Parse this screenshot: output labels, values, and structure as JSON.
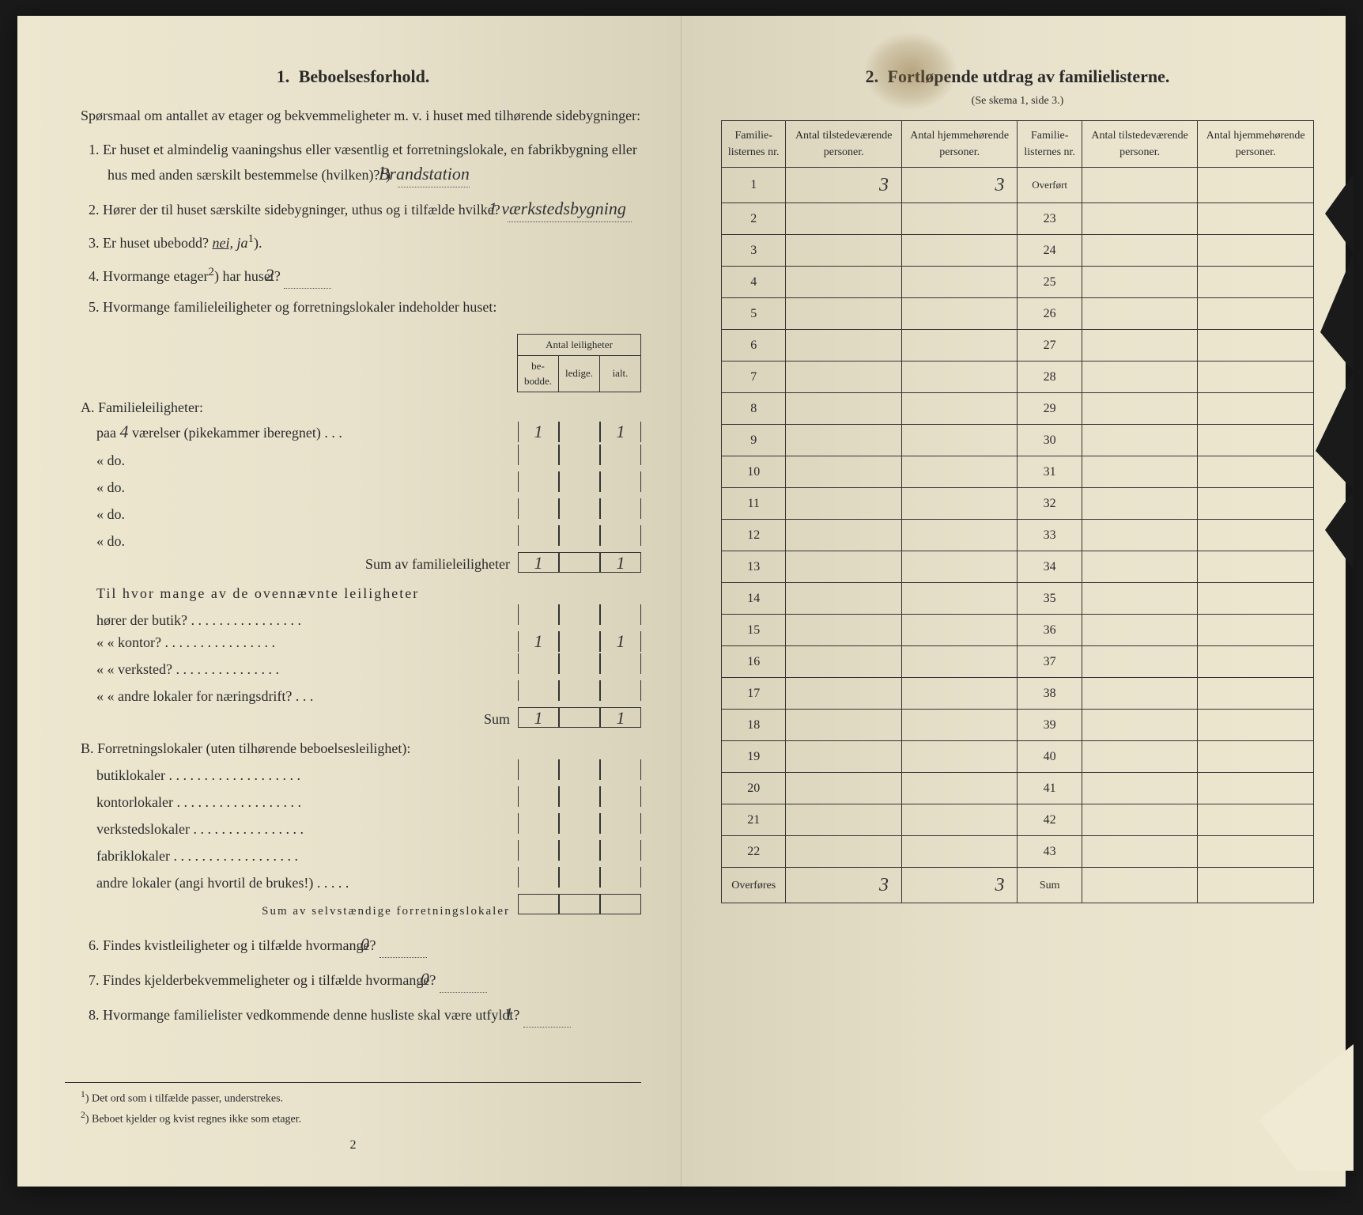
{
  "colors": {
    "paper": "#ede7d0",
    "paper_shadow": "#d8d2ba",
    "ink": "#2a2a2a",
    "stain": "#8b6e3c",
    "background": "#1a1a1a"
  },
  "left": {
    "section_num": "1.",
    "section_title": "Beboelsesforhold.",
    "intro": "Spørsmaal om antallet av etager og bekvemmeligheter m. v. i huset med tilhørende sidebygninger:",
    "q1": "Er huset et almindelig vaaningshus eller væsentlig et forretningslokale, en fabrikbygning eller hus med anden særskilt bestemmelse (hvilken)?",
    "q1_sup": "1",
    "q1_ans": "Brandstation",
    "q2": "Hører der til huset særskilte sidebygninger, uthus og i tilfælde hvilke?",
    "q2_ans": "1 værkstedsbygning",
    "q3": "Er huset ubebodd?",
    "q3_nei": "nei,",
    "q3_ja": "ja",
    "q3_sup": "1",
    "q4": "Hvormange etager",
    "q4_sup": "2",
    "q4_rest": "har huset?",
    "q4_ans": "2",
    "q5": "Hvormange familieleiligheter og forretningslokaler indeholder huset:",
    "apt_header": "Antal leiligheter",
    "apt_cols": {
      "c1": "be-\nbodde.",
      "c2": "ledige.",
      "c3": "ialt."
    },
    "A_title": "A. Familieleiligheter:",
    "A_rows": [
      {
        "label_pre": "paa",
        "label_hand": "4",
        "label_post": "værelser (pikekammer iberegnet) . . .",
        "c1": "1",
        "c2": "",
        "c3": "1"
      },
      {
        "label_pre": "«",
        "label_post": "do.",
        "c1": "",
        "c2": "",
        "c3": ""
      },
      {
        "label_pre": "«",
        "label_post": "do.",
        "c1": "",
        "c2": "",
        "c3": ""
      },
      {
        "label_pre": "«",
        "label_post": "do.",
        "c1": "",
        "c2": "",
        "c3": ""
      },
      {
        "label_pre": "«",
        "label_post": "do.",
        "c1": "",
        "c2": "",
        "c3": ""
      }
    ],
    "A_sum_label": "Sum av familieleiligheter",
    "A_sum": {
      "c1": "1",
      "c2": "",
      "c3": "1"
    },
    "A_mid": "Til hvor mange av de ovennævnte leiligheter",
    "A_mid_rows": [
      {
        "label": "hører der butik? . . . . . . . . . . . . . . . .",
        "c1": "",
        "c2": "",
        "c3": ""
      },
      {
        "label": "«    «   kontor? . . . . . . . . . . . . . . . .",
        "c1": "1",
        "c2": "",
        "c3": "1"
      },
      {
        "label": "«    «   verksted? . . . . . . . . . . . . . . .",
        "c1": "",
        "c2": "",
        "c3": ""
      },
      {
        "label": "«    «   andre lokaler for næringsdrift? . . .",
        "c1": "",
        "c2": "",
        "c3": ""
      }
    ],
    "A_mid_sum_label": "Sum",
    "A_mid_sum": {
      "c1": "1",
      "c2": "",
      "c3": "1"
    },
    "B_title": "B. Forretningslokaler (uten tilhørende beboelsesleilighet):",
    "B_rows": [
      {
        "label": "butiklokaler . . . . . . . . . . . . . . . . . . .",
        "c1": "",
        "c2": "",
        "c3": ""
      },
      {
        "label": "kontorlokaler . . . . . . . . . . . . . . . . . .",
        "c1": "",
        "c2": "",
        "c3": ""
      },
      {
        "label": "verkstedslokaler . . . . . . . . . . . . . . . .",
        "c1": "",
        "c2": "",
        "c3": ""
      },
      {
        "label": "fabriklokaler . . . . . . . . . . . . . . . . . .",
        "c1": "",
        "c2": "",
        "c3": ""
      },
      {
        "label": "andre lokaler (angi hvortil de brukes!) . . . . .",
        "c1": "",
        "c2": "",
        "c3": ""
      }
    ],
    "B_sum_label": "Sum av selvstændige forretningslokaler",
    "q6": "Findes kvistleiligheter og i tilfælde hvormange?",
    "q6_ans": "0",
    "q7": "Findes kjelderbekvemmeligheter og i tilfælde hvormange?",
    "q7_ans": "0",
    "q8": "Hvormange familielister vedkommende denne husliste skal være utfyldt?",
    "q8_ans": "1",
    "fn1": "Det ord som i tilfælde passer, understrekes.",
    "fn2": "Beboet kjelder og kvist regnes ikke som etager.",
    "page_num": "2"
  },
  "right": {
    "section_num": "2.",
    "section_title": "Fortløpende utdrag av familielisterne.",
    "subtitle": "(Se skema 1, side 3.)",
    "cols": {
      "c1": "Familie-\nlisternes\nnr.",
      "c2": "Antal\ntilstedeværende\npersoner.",
      "c3": "Antal\nhjemmehørende\npersoner.",
      "c4": "Familie-\nlisternes\nnr.",
      "c5": "Antal\ntilstedeværende\npersoner.",
      "c6": "Antal\nhjemmehørende\npersoner."
    },
    "rows_left": [
      {
        "n": "1",
        "a": "3",
        "b": "3"
      },
      {
        "n": "2",
        "a": "",
        "b": ""
      },
      {
        "n": "3",
        "a": "",
        "b": ""
      },
      {
        "n": "4",
        "a": "",
        "b": ""
      },
      {
        "n": "5",
        "a": "",
        "b": ""
      },
      {
        "n": "6",
        "a": "",
        "b": ""
      },
      {
        "n": "7",
        "a": "",
        "b": ""
      },
      {
        "n": "8",
        "a": "",
        "b": ""
      },
      {
        "n": "9",
        "a": "",
        "b": ""
      },
      {
        "n": "10",
        "a": "",
        "b": ""
      },
      {
        "n": "11",
        "a": "",
        "b": ""
      },
      {
        "n": "12",
        "a": "",
        "b": ""
      },
      {
        "n": "13",
        "a": "",
        "b": ""
      },
      {
        "n": "14",
        "a": "",
        "b": ""
      },
      {
        "n": "15",
        "a": "",
        "b": ""
      },
      {
        "n": "16",
        "a": "",
        "b": ""
      },
      {
        "n": "17",
        "a": "",
        "b": ""
      },
      {
        "n": "18",
        "a": "",
        "b": ""
      },
      {
        "n": "19",
        "a": "",
        "b": ""
      },
      {
        "n": "20",
        "a": "",
        "b": ""
      },
      {
        "n": "21",
        "a": "",
        "b": ""
      },
      {
        "n": "22",
        "a": "",
        "b": ""
      }
    ],
    "rows_right": [
      {
        "n": "Overført",
        "a": "",
        "b": ""
      },
      {
        "n": "23",
        "a": "",
        "b": ""
      },
      {
        "n": "24",
        "a": "",
        "b": ""
      },
      {
        "n": "25",
        "a": "",
        "b": ""
      },
      {
        "n": "26",
        "a": "",
        "b": ""
      },
      {
        "n": "27",
        "a": "",
        "b": ""
      },
      {
        "n": "28",
        "a": "",
        "b": ""
      },
      {
        "n": "29",
        "a": "",
        "b": ""
      },
      {
        "n": "30",
        "a": "",
        "b": ""
      },
      {
        "n": "31",
        "a": "",
        "b": ""
      },
      {
        "n": "32",
        "a": "",
        "b": ""
      },
      {
        "n": "33",
        "a": "",
        "b": ""
      },
      {
        "n": "34",
        "a": "",
        "b": ""
      },
      {
        "n": "35",
        "a": "",
        "b": ""
      },
      {
        "n": "36",
        "a": "",
        "b": ""
      },
      {
        "n": "37",
        "a": "",
        "b": ""
      },
      {
        "n": "38",
        "a": "",
        "b": ""
      },
      {
        "n": "39",
        "a": "",
        "b": ""
      },
      {
        "n": "40",
        "a": "",
        "b": ""
      },
      {
        "n": "41",
        "a": "",
        "b": ""
      },
      {
        "n": "42",
        "a": "",
        "b": ""
      },
      {
        "n": "43",
        "a": "",
        "b": ""
      }
    ],
    "footer_left_label": "Overføres",
    "footer_left": {
      "a": "3",
      "b": "3"
    },
    "footer_right_label": "Sum",
    "footer_right": {
      "a": "",
      "b": ""
    }
  }
}
